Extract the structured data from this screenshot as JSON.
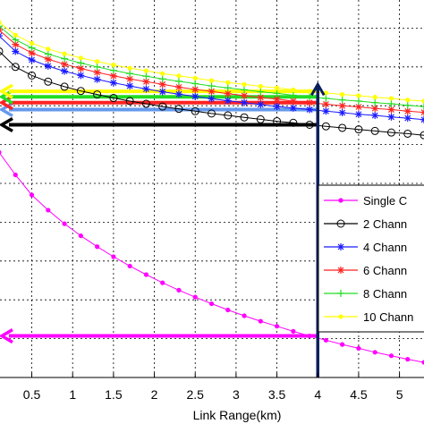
{
  "chart_data": {
    "type": "line",
    "xlabel": "Link Range(km)",
    "ylabel": "",
    "title": "",
    "xlim": [
      0.1,
      5.3
    ],
    "ylim": [
      0,
      1
    ],
    "x_ticks": [
      "0.5",
      "1",
      "1.5",
      "2",
      "2.5",
      "3",
      "3.5",
      "4",
      "4.5",
      "5"
    ],
    "grid": true,
    "legend_position": "right",
    "x": [
      0.1,
      0.3,
      0.5,
      0.7,
      0.9,
      1.1,
      1.3,
      1.5,
      1.7,
      1.9,
      2.1,
      2.3,
      2.5,
      2.7,
      2.9,
      3.1,
      3.3,
      3.5,
      3.7,
      3.9,
      4.1,
      4.3,
      4.5,
      4.7,
      4.9,
      5.1,
      5.3
    ],
    "series": [
      {
        "name": "Single C",
        "color": "#ff00ff",
        "marker": "dot",
        "values": [
          0.58,
          0.522,
          0.47,
          0.431,
          0.396,
          0.365,
          0.337,
          0.311,
          0.287,
          0.265,
          0.244,
          0.225,
          0.207,
          0.19,
          0.174,
          0.159,
          0.145,
          0.132,
          0.119,
          0.107,
          0.096,
          0.085,
          0.075,
          0.065,
          0.056,
          0.047,
          0.039
        ]
      },
      {
        "name": "2 Chann",
        "color": "#000000",
        "marker": "circle",
        "values": [
          0.84,
          0.8,
          0.778,
          0.762,
          0.749,
          0.738,
          0.729,
          0.72,
          0.712,
          0.705,
          0.698,
          0.692,
          0.686,
          0.68,
          0.675,
          0.67,
          0.665,
          0.66,
          0.656,
          0.651,
          0.647,
          0.643,
          0.639,
          0.635,
          0.631,
          0.628,
          0.624
        ]
      },
      {
        "name": "4 Chann",
        "color": "#1a1aff",
        "marker": "star",
        "values": [
          0.88,
          0.84,
          0.818,
          0.802,
          0.789,
          0.778,
          0.768,
          0.759,
          0.751,
          0.743,
          0.736,
          0.73,
          0.724,
          0.718,
          0.713,
          0.708,
          0.703,
          0.698,
          0.694,
          0.69,
          0.686,
          0.682,
          0.678,
          0.675,
          0.671,
          0.668,
          0.664
        ]
      },
      {
        "name": "6 Chann",
        "color": "#ff2222",
        "marker": "asterisk",
        "values": [
          0.895,
          0.858,
          0.836,
          0.82,
          0.807,
          0.796,
          0.786,
          0.777,
          0.769,
          0.762,
          0.755,
          0.748,
          0.742,
          0.737,
          0.731,
          0.726,
          0.721,
          0.717,
          0.712,
          0.708,
          0.704,
          0.7,
          0.697,
          0.693,
          0.69,
          0.686,
          0.683
        ]
      },
      {
        "name": "8 Chann",
        "color": "#22dd22",
        "marker": "plus",
        "values": [
          0.905,
          0.87,
          0.849,
          0.833,
          0.821,
          0.81,
          0.8,
          0.791,
          0.783,
          0.776,
          0.769,
          0.763,
          0.757,
          0.751,
          0.746,
          0.741,
          0.736,
          0.732,
          0.727,
          0.723,
          0.719,
          0.715,
          0.712,
          0.708,
          0.705,
          0.701,
          0.698
        ]
      },
      {
        "name": "10 Chann",
        "color": "#ffff00",
        "marker": "dot",
        "values": [
          0.915,
          0.882,
          0.861,
          0.846,
          0.834,
          0.823,
          0.814,
          0.805,
          0.797,
          0.79,
          0.783,
          0.777,
          0.771,
          0.765,
          0.76,
          0.755,
          0.75,
          0.746,
          0.741,
          0.737,
          0.733,
          0.729,
          0.726,
          0.722,
          0.719,
          0.715,
          0.712
        ]
      }
    ],
    "annotations": {
      "vertical_marker_x": 4,
      "vertical_marker_color": "#0a1f5c",
      "horizontal_arrows": [
        {
          "series": "Single C",
          "y": 0.107,
          "color": "#ff00ff"
        },
        {
          "series": "2 Chann",
          "y": 0.651,
          "color": "#000000"
        },
        {
          "series": "4 Chann",
          "y": 0.69,
          "color": "#6699ee"
        },
        {
          "series": "6 Chann",
          "y": 0.708,
          "color": "#ff2222"
        },
        {
          "series": "8 Chann",
          "y": 0.723,
          "color": "#22dd22"
        },
        {
          "series": "10 Chann",
          "y": 0.737,
          "color": "#ffff00"
        }
      ]
    }
  }
}
